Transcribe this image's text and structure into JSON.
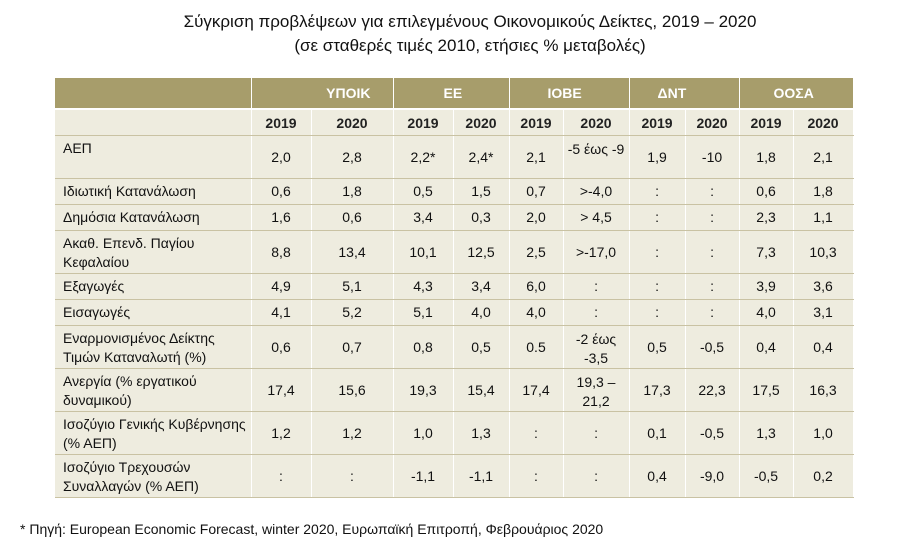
{
  "title_line1": "Σύγκριση προβλέψεων για επιλεγμένους Οικονομικούς Δείκτες, 2019 – 2020",
  "title_line2": "(σε σταθερές τιμές 2010, ετήσιες % μεταβολές)",
  "groups": [
    "ΥΠΟΙΚ",
    "ΕΕ",
    "ΙΟΒΕ",
    "ΔΝΤ",
    "ΟΟΣΑ"
  ],
  "years": [
    "2019",
    "2020",
    "2019",
    "2020",
    "2019",
    "2020",
    "2019",
    "2020",
    "2019",
    "2020"
  ],
  "rows": [
    {
      "label": "ΑΕΠ",
      "values": [
        "2,0",
        "2,8",
        "2,2*",
        "2,4*",
        "2,1",
        "-5 έως -9",
        "1,9",
        "-10",
        "1,8",
        "2,1"
      ]
    },
    {
      "label": "Ιδιωτική Κατανάλωση",
      "values": [
        "0,6",
        "1,8",
        "0,5",
        "1,5",
        "0,7",
        ">-4,0",
        ":",
        ":",
        "0,6",
        "1,8"
      ]
    },
    {
      "label": "Δημόσια Κατανάλωση",
      "values": [
        "1,6",
        "0,6",
        "3,4",
        "0,3",
        "2,0",
        "> 4,5",
        ":",
        ":",
        "2,3",
        "1,1"
      ]
    },
    {
      "label": "Ακαθ. Επενδ. Παγίου Κεφαλαίου",
      "values": [
        "8,8",
        "13,4",
        "10,1",
        "12,5",
        "2,5",
        ">-17,0",
        ":",
        ":",
        "7,3",
        "10,3"
      ]
    },
    {
      "label": "Εξαγωγές",
      "values": [
        "4,9",
        "5,1",
        "4,3",
        "3,4",
        "6,0",
        ":",
        ":",
        ":",
        "3,9",
        "3,6"
      ]
    },
    {
      "label": "Εισαγωγές",
      "values": [
        "4,1",
        "5,2",
        "5,1",
        "4,0",
        "4,0",
        ":",
        ":",
        ":",
        "4,0",
        "3,1"
      ]
    },
    {
      "label": "Εναρμονισμένος Δείκτης Τιμών Καταναλωτή (%)",
      "values": [
        "0,6",
        "0,7",
        "0,8",
        "0,5",
        "0.5",
        "-2 έως -3,5",
        "0,5",
        "-0,5",
        "0,4",
        "0,4"
      ]
    },
    {
      "label": "Ανεργία (% εργατικού δυναμικού)",
      "values": [
        "17,4",
        "15,6",
        "19,3",
        "15,4",
        "17,4",
        "19,3 – 21,2",
        "17,3",
        "22,3",
        "17,5",
        "16,3"
      ]
    },
    {
      "label": "Ισοζύγιο Γενικής Κυβέρνησης (% ΑΕΠ)",
      "values": [
        "1,2",
        "1,2",
        "1,0",
        "1,3",
        ":",
        ":",
        "0,1",
        "-0,5",
        "1,3",
        "1,0"
      ]
    },
    {
      "label": "Ισοζύγιο Τρεχουσών Συναλλαγών (% ΑΕΠ)",
      "values": [
        ":",
        ":",
        "-1,1",
        "-1,1",
        ":",
        ":",
        "0,4",
        "-9,0",
        "-0,5",
        "0,2"
      ]
    }
  ],
  "footnote": "* Πηγή: European Economic Forecast, winter 2020, Ευρωπαϊκή Επιτροπή, Φεβρουάριος 2020"
}
